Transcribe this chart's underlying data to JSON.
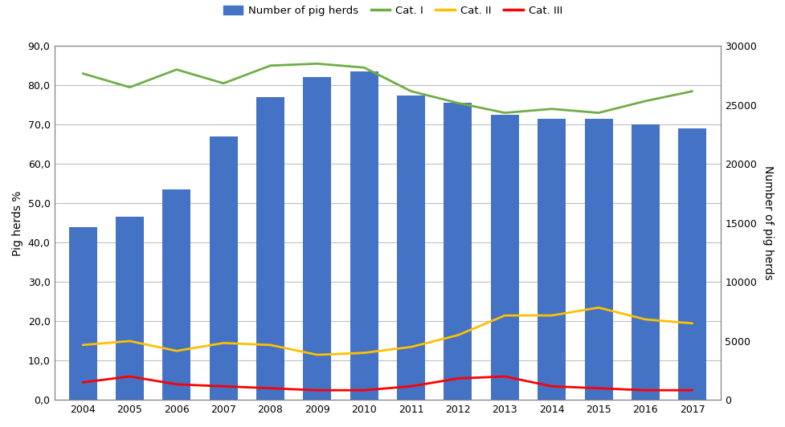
{
  "years": [
    2004,
    2005,
    2006,
    2007,
    2008,
    2009,
    2010,
    2011,
    2012,
    2013,
    2014,
    2015,
    2016,
    2017
  ],
  "bar_values": [
    44.0,
    46.5,
    53.5,
    67.0,
    77.0,
    82.0,
    83.5,
    77.5,
    75.5,
    72.5,
    71.5,
    71.5,
    70.0,
    69.0
  ],
  "cat1": [
    83.0,
    79.5,
    84.0,
    80.5,
    85.0,
    85.5,
    84.5,
    78.5,
    75.5,
    73.0,
    74.0,
    73.0,
    76.0,
    78.5
  ],
  "cat2": [
    14.0,
    15.0,
    12.5,
    14.5,
    14.0,
    11.5,
    12.0,
    13.5,
    16.5,
    21.5,
    21.5,
    23.5,
    20.5,
    19.5
  ],
  "cat3": [
    4.5,
    6.0,
    4.0,
    3.5,
    3.0,
    2.5,
    2.5,
    3.5,
    5.5,
    6.0,
    3.5,
    3.0,
    2.5,
    2.5
  ],
  "bar_color": "#4472C4",
  "cat1_color": "#70AD47",
  "cat2_color": "#FFC000",
  "cat3_color": "#FF0000",
  "ylabel_left": "Pig herds %",
  "ylabel_right": "Number of pig herds",
  "ylim_left": [
    0,
    90
  ],
  "ylim_right": [
    0,
    30000
  ],
  "yticks_left": [
    0.0,
    10.0,
    20.0,
    30.0,
    40.0,
    50.0,
    60.0,
    70.0,
    80.0,
    90.0
  ],
  "ytick_labels_left": [
    "0,0",
    "10,0",
    "20,0",
    "30,0",
    "40,0",
    "50,0",
    "60,0",
    "70,0",
    "80,0",
    "90,0"
  ],
  "yticks_right": [
    0,
    5000,
    10000,
    15000,
    20000,
    25000,
    30000
  ],
  "legend_labels": [
    "Number of pig herds",
    "Cat. I",
    "Cat. II",
    "Cat. III"
  ],
  "background_color": "#FFFFFF",
  "grid_color": "#BFBFBF",
  "spine_color": "#808080",
  "bar_width": 0.6,
  "line_width": 2.0,
  "tick_fontsize": 9,
  "label_fontsize": 10,
  "legend_fontsize": 9.5
}
